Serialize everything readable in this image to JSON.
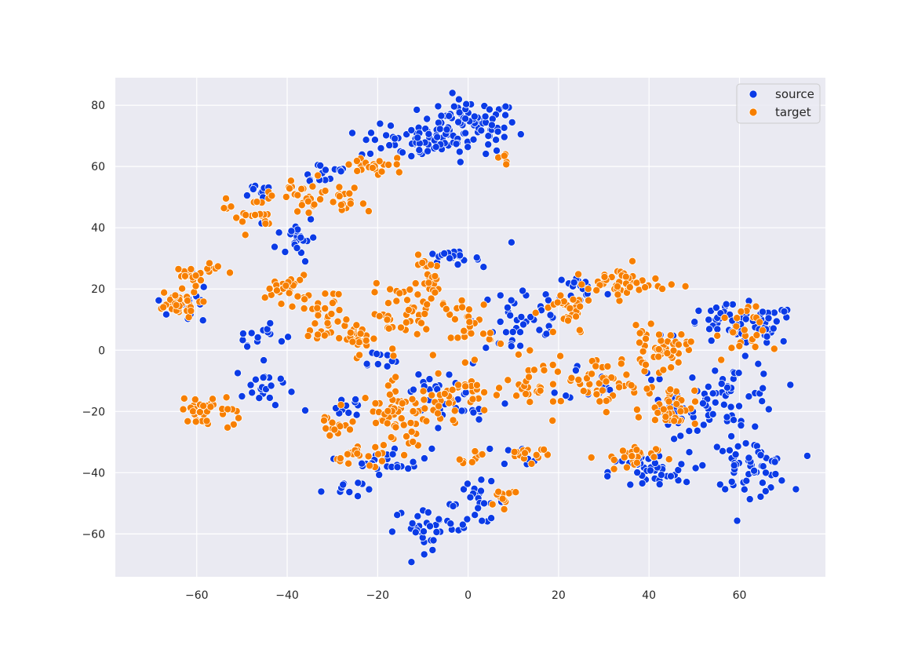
{
  "chart_data": {
    "type": "scatter",
    "title": "",
    "xlabel": "",
    "ylabel": "",
    "xlim": [
      -78,
      79
    ],
    "ylim": [
      -74,
      89
    ],
    "grid": true,
    "legend_position": "top-right",
    "x_ticks": [
      -60,
      -40,
      -20,
      0,
      20,
      40,
      60
    ],
    "y_ticks": [
      -60,
      -40,
      -20,
      0,
      20,
      40,
      60,
      80
    ],
    "x_tick_labels": [
      "−60",
      "−40",
      "−20",
      "0",
      "20",
      "40",
      "60"
    ],
    "y_tick_labels": [
      "−60",
      "−40",
      "−20",
      "0",
      "20",
      "40",
      "60",
      "80"
    ],
    "series": [
      {
        "name": "source",
        "color": "#0b3be6"
      },
      {
        "name": "target",
        "color": "#f77f00"
      }
    ],
    "clusters": [
      {
        "series": 0,
        "cx": 0,
        "cy": 73,
        "rx": 10,
        "ry": 8,
        "n": 90
      },
      {
        "series": 0,
        "cx": -13,
        "cy": 68,
        "rx": 10,
        "ry": 5,
        "n": 45
      },
      {
        "series": 0,
        "cx": -32,
        "cy": 58,
        "rx": 6,
        "ry": 4,
        "n": 14
      },
      {
        "series": 0,
        "cx": -45,
        "cy": 52,
        "rx": 5,
        "ry": 3,
        "n": 10
      },
      {
        "series": 0,
        "cx": -38,
        "cy": 37,
        "rx": 4,
        "ry": 7,
        "n": 22
      },
      {
        "series": 0,
        "cx": -46,
        "cy": 5,
        "rx": 5,
        "ry": 3,
        "n": 14
      },
      {
        "series": 0,
        "cx": -45,
        "cy": -12,
        "rx": 6,
        "ry": 7,
        "n": 22
      },
      {
        "series": 0,
        "cx": -28,
        "cy": -45,
        "rx": 4,
        "ry": 3,
        "n": 10
      },
      {
        "series": 0,
        "cx": -17,
        "cy": -36,
        "rx": 8,
        "ry": 4,
        "n": 25
      },
      {
        "series": 0,
        "cx": -8,
        "cy": -58,
        "rx": 8,
        "ry": 6,
        "n": 35
      },
      {
        "series": 0,
        "cx": 2,
        "cy": -50,
        "rx": 6,
        "ry": 6,
        "n": 22
      },
      {
        "series": 0,
        "cx": -4,
        "cy": 30,
        "rx": 6,
        "ry": 2,
        "n": 20
      },
      {
        "series": 0,
        "cx": 12,
        "cy": 10,
        "rx": 10,
        "ry": 14,
        "n": 45
      },
      {
        "series": 0,
        "cx": 60,
        "cy": 8,
        "rx": 12,
        "ry": 6,
        "n": 70
      },
      {
        "series": 0,
        "cx": 58,
        "cy": -15,
        "rx": 10,
        "ry": 10,
        "n": 60
      },
      {
        "series": 0,
        "cx": 62,
        "cy": -38,
        "rx": 8,
        "ry": 8,
        "n": 60
      },
      {
        "series": 0,
        "cx": 40,
        "cy": -40,
        "rx": 8,
        "ry": 6,
        "n": 40
      },
      {
        "series": 0,
        "cx": 45,
        "cy": -20,
        "rx": 5,
        "ry": 8,
        "n": 25
      },
      {
        "series": 0,
        "cx": 25,
        "cy": 20,
        "rx": 5,
        "ry": 5,
        "n": 18
      },
      {
        "series": 0,
        "cx": -8,
        "cy": -10,
        "rx": 6,
        "ry": 4,
        "n": 14
      },
      {
        "series": 0,
        "cx": 0,
        "cy": -20,
        "rx": 10,
        "ry": 6,
        "n": 18
      },
      {
        "series": 0,
        "cx": -62,
        "cy": 15,
        "rx": 4,
        "ry": 10,
        "n": 14
      },
      {
        "series": 0,
        "cx": -27,
        "cy": -18,
        "rx": 4,
        "ry": 4,
        "n": 10
      },
      {
        "series": 0,
        "cx": 30,
        "cy": -10,
        "rx": 8,
        "ry": 6,
        "n": 14
      },
      {
        "series": 0,
        "cx": 12,
        "cy": -34,
        "rx": 5,
        "ry": 3,
        "n": 8
      },
      {
        "series": 0,
        "cx": -20,
        "cy": -3,
        "rx": 4,
        "ry": 3,
        "n": 10
      },
      {
        "series": 1,
        "cx": -65,
        "cy": 15,
        "rx": 5,
        "ry": 4,
        "n": 35
      },
      {
        "series": 1,
        "cx": -62,
        "cy": 24,
        "rx": 3,
        "ry": 3,
        "n": 14
      },
      {
        "series": 1,
        "cx": -60,
        "cy": -20,
        "rx": 3,
        "ry": 4,
        "n": 22
      },
      {
        "series": 1,
        "cx": -55,
        "cy": -20,
        "rx": 4,
        "ry": 6,
        "n": 15
      },
      {
        "series": 1,
        "cx": -48,
        "cy": 45,
        "rx": 5,
        "ry": 6,
        "n": 25
      },
      {
        "series": 1,
        "cx": -36,
        "cy": 50,
        "rx": 6,
        "ry": 6,
        "n": 25
      },
      {
        "series": 1,
        "cx": -27,
        "cy": 48,
        "rx": 4,
        "ry": 5,
        "n": 18
      },
      {
        "series": 1,
        "cx": -20,
        "cy": 60,
        "rx": 8,
        "ry": 3,
        "n": 22
      },
      {
        "series": 1,
        "cx": 7,
        "cy": 63,
        "rx": 2,
        "ry": 3,
        "n": 5
      },
      {
        "series": 1,
        "cx": -40,
        "cy": 20,
        "rx": 4,
        "ry": 4,
        "n": 25
      },
      {
        "series": 1,
        "cx": -32,
        "cy": 12,
        "rx": 4,
        "ry": 7,
        "n": 30
      },
      {
        "series": 1,
        "cx": -25,
        "cy": 4,
        "rx": 5,
        "ry": 5,
        "n": 30
      },
      {
        "series": 1,
        "cx": -15,
        "cy": 12,
        "rx": 6,
        "ry": 8,
        "n": 35
      },
      {
        "series": 1,
        "cx": -8,
        "cy": 22,
        "rx": 4,
        "ry": 8,
        "n": 30
      },
      {
        "series": 1,
        "cx": 0,
        "cy": 8,
        "rx": 5,
        "ry": 10,
        "n": 30
      },
      {
        "series": 1,
        "cx": -15,
        "cy": -22,
        "rx": 8,
        "ry": 10,
        "n": 70
      },
      {
        "series": 1,
        "cx": -3,
        "cy": -15,
        "rx": 6,
        "ry": 6,
        "n": 30
      },
      {
        "series": 1,
        "cx": -25,
        "cy": -35,
        "rx": 4,
        "ry": 3,
        "n": 15
      },
      {
        "series": 1,
        "cx": -30,
        "cy": -25,
        "rx": 3,
        "ry": 5,
        "n": 15
      },
      {
        "series": 1,
        "cx": 8,
        "cy": -48,
        "rx": 4,
        "ry": 3,
        "n": 12
      },
      {
        "series": 1,
        "cx": 13,
        "cy": -33,
        "rx": 5,
        "ry": 3,
        "n": 15
      },
      {
        "series": 1,
        "cx": 15,
        "cy": -12,
        "rx": 6,
        "ry": 8,
        "n": 30
      },
      {
        "series": 1,
        "cx": 22,
        "cy": 12,
        "rx": 5,
        "ry": 8,
        "n": 30
      },
      {
        "series": 1,
        "cx": 35,
        "cy": 22,
        "rx": 8,
        "ry": 5,
        "n": 45
      },
      {
        "series": 1,
        "cx": 42,
        "cy": 0,
        "rx": 6,
        "ry": 6,
        "n": 45
      },
      {
        "series": 1,
        "cx": 45,
        "cy": -18,
        "rx": 5,
        "ry": 6,
        "n": 40
      },
      {
        "series": 1,
        "cx": 30,
        "cy": -10,
        "rx": 8,
        "ry": 8,
        "n": 45
      },
      {
        "series": 1,
        "cx": 35,
        "cy": -35,
        "rx": 6,
        "ry": 4,
        "n": 25
      },
      {
        "series": 1,
        "cx": 60,
        "cy": 5,
        "rx": 5,
        "ry": 8,
        "n": 25
      },
      {
        "series": 1,
        "cx": -57,
        "cy": 26,
        "rx": 3,
        "ry": 3,
        "n": 10
      },
      {
        "series": 1,
        "cx": 0,
        "cy": -35,
        "rx": 3,
        "ry": 3,
        "n": 8
      }
    ]
  }
}
